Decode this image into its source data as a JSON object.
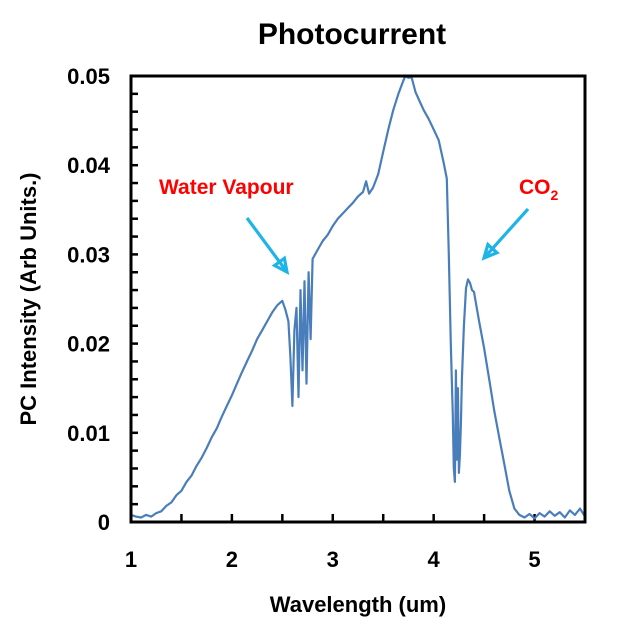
{
  "chart_data": {
    "type": "line",
    "title": "Photocurrent",
    "xlabel": "Wavelength (um)",
    "ylabel": "PC Intensity (Arb Units.)",
    "xlim": [
      1,
      5.5
    ],
    "ylim": [
      0,
      0.05
    ],
    "x_ticks": [
      1,
      2,
      3,
      4,
      5
    ],
    "x_tick_labels": [
      "1",
      "2",
      "3",
      "4",
      "5"
    ],
    "x_minor_step": 0.5,
    "y_ticks": [
      0,
      0.01,
      0.02,
      0.03,
      0.04,
      0.05
    ],
    "y_tick_labels": [
      "0",
      "0.01",
      "0.02",
      "0.03",
      "0.04",
      "0.05"
    ],
    "y_minor_step": 0.002,
    "grid": false,
    "series_color": "#4a7ebb",
    "annotation_color": "#ff0000",
    "arrow_color": "#1fb4e8",
    "series": [
      {
        "name": "Photocurrent",
        "x": [
          1.0,
          1.05,
          1.1,
          1.15,
          1.2,
          1.25,
          1.3,
          1.35,
          1.4,
          1.45,
          1.5,
          1.55,
          1.6,
          1.65,
          1.7,
          1.75,
          1.8,
          1.85,
          1.9,
          1.95,
          2.0,
          2.05,
          2.1,
          2.15,
          2.2,
          2.25,
          2.3,
          2.35,
          2.4,
          2.45,
          2.5,
          2.53,
          2.56,
          2.58,
          2.6,
          2.62,
          2.64,
          2.66,
          2.68,
          2.7,
          2.72,
          2.74,
          2.76,
          2.78,
          2.8,
          2.85,
          2.9,
          2.95,
          3.0,
          3.05,
          3.1,
          3.15,
          3.2,
          3.25,
          3.3,
          3.33,
          3.36,
          3.4,
          3.45,
          3.5,
          3.55,
          3.6,
          3.65,
          3.7,
          3.72,
          3.75,
          3.78,
          3.82,
          3.86,
          3.9,
          3.95,
          4.0,
          4.05,
          4.1,
          4.13,
          4.15,
          4.17,
          4.19,
          4.2,
          4.21,
          4.22,
          4.23,
          4.24,
          4.25,
          4.26,
          4.27,
          4.28,
          4.3,
          4.32,
          4.34,
          4.36,
          4.38,
          4.4,
          4.42,
          4.45,
          4.5,
          4.55,
          4.6,
          4.65,
          4.7,
          4.75,
          4.8,
          4.85,
          4.9,
          4.95,
          5.0,
          5.05,
          5.1,
          5.15,
          5.2,
          5.25,
          5.3,
          5.35,
          5.4,
          5.45,
          5.5
        ],
        "y": [
          0.0008,
          0.0006,
          0.0005,
          0.0008,
          0.0006,
          0.001,
          0.0012,
          0.0018,
          0.0022,
          0.003,
          0.0035,
          0.0045,
          0.0052,
          0.0063,
          0.0072,
          0.0083,
          0.0095,
          0.0105,
          0.0118,
          0.013,
          0.0142,
          0.0155,
          0.0168,
          0.018,
          0.0192,
          0.0205,
          0.0215,
          0.0225,
          0.0235,
          0.0243,
          0.0248,
          0.0238,
          0.0225,
          0.0185,
          0.013,
          0.0215,
          0.024,
          0.014,
          0.026,
          0.017,
          0.027,
          0.0155,
          0.028,
          0.0205,
          0.0295,
          0.0305,
          0.0315,
          0.0322,
          0.0332,
          0.034,
          0.0346,
          0.0352,
          0.0358,
          0.0365,
          0.037,
          0.0382,
          0.0368,
          0.0375,
          0.039,
          0.0415,
          0.044,
          0.0462,
          0.048,
          0.0495,
          0.05,
          0.0498,
          0.0499,
          0.0482,
          0.0472,
          0.0462,
          0.0452,
          0.044,
          0.0428,
          0.0402,
          0.0385,
          0.03,
          0.02,
          0.012,
          0.006,
          0.0045,
          0.017,
          0.007,
          0.015,
          0.0055,
          0.0075,
          0.011,
          0.016,
          0.022,
          0.0262,
          0.0272,
          0.0268,
          0.026,
          0.0258,
          0.0245,
          0.0225,
          0.0195,
          0.016,
          0.0125,
          0.0095,
          0.0065,
          0.0035,
          0.0015,
          0.0008,
          0.0005,
          0.0009,
          0.0004,
          0.001,
          0.0006,
          0.0012,
          0.0007,
          0.0011,
          0.0005,
          0.0013,
          0.0008,
          0.0015,
          0.0006
        ]
      }
    ],
    "annotations": [
      {
        "text": "Water Vapour",
        "target_x": 2.6,
        "target_y": 0.0275
      },
      {
        "text": "CO",
        "subscript": "2",
        "target_x": 4.46,
        "target_y": 0.0288
      }
    ]
  }
}
